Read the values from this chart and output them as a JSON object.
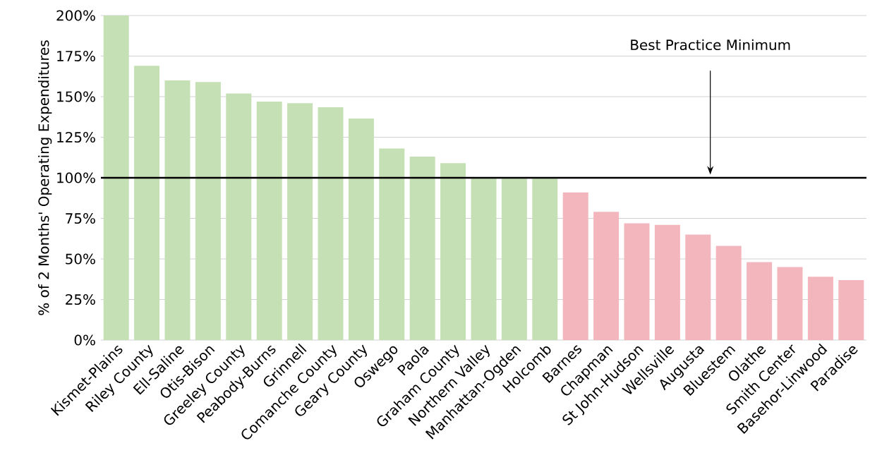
{
  "chart_data": {
    "type": "bar",
    "ylabel": "% of 2 Months' Operating Expenditures",
    "categories": [
      "Kismet-Plains",
      "Riley County",
      "Ell-Saline",
      "Otis-Bison",
      "Greeley County",
      "Peabody-Burns",
      "Grinnell",
      "Comanche County",
      "Geary County",
      "Oswego",
      "Paola",
      "Graham County",
      "Northern Valley",
      "Manhattan-Ogden",
      "Holcomb",
      "Barnes",
      "Chapman",
      "St John-Hudson",
      "Wellsville",
      "Augusta",
      "Bluestem",
      "Olathe",
      "Smith Center",
      "Basehor-Linwood",
      "Paradise"
    ],
    "values": [
      200,
      169,
      160,
      159,
      152,
      147,
      146,
      143.5,
      136.5,
      118,
      113,
      109,
      100,
      100,
      100,
      91,
      79,
      72,
      71,
      65,
      58,
      48,
      45,
      39,
      37
    ],
    "colors": [
      "#c5e0b4",
      "#c5e0b4",
      "#c5e0b4",
      "#c5e0b4",
      "#c5e0b4",
      "#c5e0b4",
      "#c5e0b4",
      "#c5e0b4",
      "#c5e0b4",
      "#c5e0b4",
      "#c5e0b4",
      "#c5e0b4",
      "#c5e0b4",
      "#c5e0b4",
      "#c5e0b4",
      "#f4b6bd",
      "#f4b6bd",
      "#f4b6bd",
      "#f4b6bd",
      "#f4b6bd",
      "#f4b6bd",
      "#f4b6bd",
      "#f4b6bd",
      "#f4b6bd",
      "#f4b6bd"
    ],
    "ylim": [
      0,
      200
    ],
    "yticks": [
      {
        "value": 0,
        "label": "0%"
      },
      {
        "value": 25,
        "label": "25%"
      },
      {
        "value": 50,
        "label": "50%"
      },
      {
        "value": 75,
        "label": "75%"
      },
      {
        "value": 100,
        "label": "100%"
      },
      {
        "value": 125,
        "label": "125%"
      },
      {
        "value": 150,
        "label": "150%"
      },
      {
        "value": 175,
        "label": "175%"
      },
      {
        "value": 200,
        "label": "200%"
      }
    ],
    "grid": "y",
    "ref_lines": [
      {
        "axis": "y",
        "value": 100,
        "label": "Best Practice Minimum",
        "color": "#000000"
      }
    ]
  }
}
